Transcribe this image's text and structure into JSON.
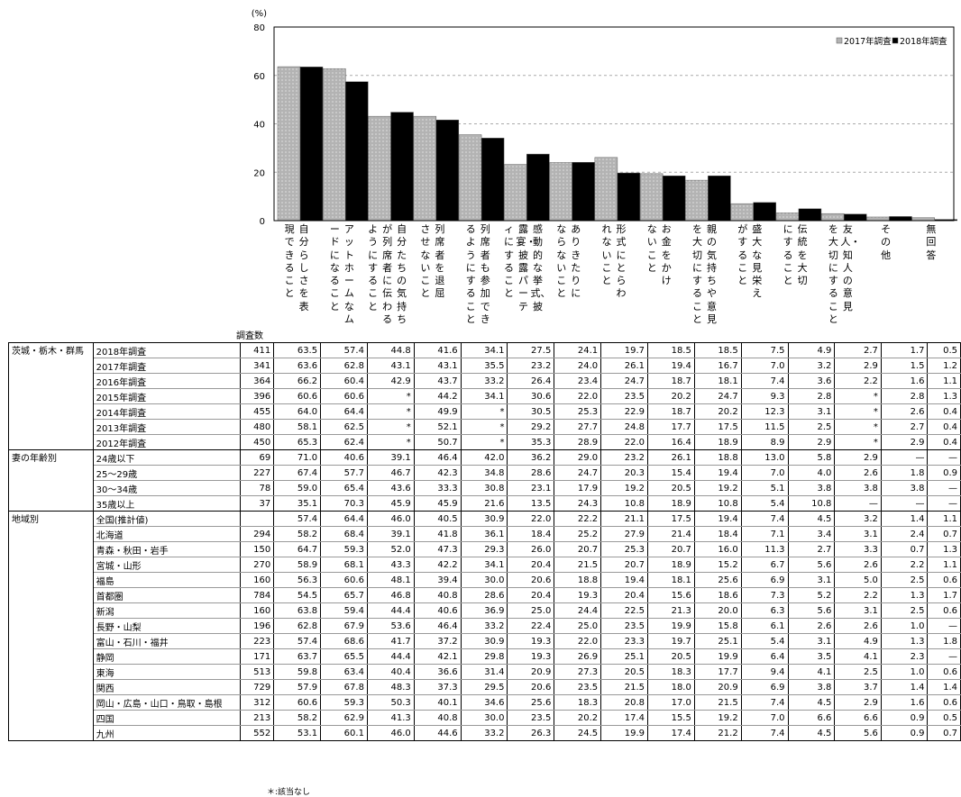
{
  "chart_data": {
    "type": "bar",
    "unit_label": "(%)",
    "ylim": [
      0,
      80
    ],
    "yticks": [
      0,
      20,
      40,
      60,
      80
    ],
    "grid": true,
    "legend_position": "top-right",
    "categories": [
      "自分らしさを表現できること",
      "アットホームなムードになること",
      "自分たちの気持ちが列席者に伝わるようにすること",
      "列席者を退屈させないこと",
      "列席者も参加できるようにすること",
      "感動的な挙式、披露宴・披露パーティにすること",
      "ありきたりにならないこと",
      "形式にとらわれないこと",
      "お金をかけないこと",
      "親の気持ちや意見を大切にすること",
      "盛大な見栄えがすること",
      "伝統を大切にすること",
      "友人・知人の意見を大切にすること",
      "その他",
      "無回答"
    ],
    "series": [
      {
        "name": "2017年調査",
        "color": "#b3b3b3",
        "values": [
          63.6,
          62.8,
          43.1,
          43.1,
          35.5,
          23.2,
          24.0,
          26.1,
          19.4,
          16.7,
          7.0,
          3.2,
          2.9,
          1.5,
          1.2
        ]
      },
      {
        "name": "2018年調査",
        "color": "#000000",
        "values": [
          63.5,
          57.4,
          44.8,
          41.6,
          34.1,
          27.5,
          24.1,
          19.7,
          18.5,
          18.5,
          7.5,
          4.9,
          2.7,
          1.7,
          0.5
        ]
      }
    ]
  },
  "table": {
    "count_header": "調査数",
    "groups": [
      {
        "name": "茨城・栃木・群馬",
        "rows": [
          {
            "label": "2018年調査",
            "n": "411",
            "v": [
              "63.5",
              "57.4",
              "44.8",
              "41.6",
              "34.1",
              "27.5",
              "24.1",
              "19.7",
              "18.5",
              "18.5",
              "7.5",
              "4.9",
              "2.7",
              "1.7",
              "0.5"
            ]
          },
          {
            "label": "2017年調査",
            "n": "341",
            "v": [
              "63.6",
              "62.8",
              "43.1",
              "43.1",
              "35.5",
              "23.2",
              "24.0",
              "26.1",
              "19.4",
              "16.7",
              "7.0",
              "3.2",
              "2.9",
              "1.5",
              "1.2"
            ]
          },
          {
            "label": "2016年調査",
            "n": "364",
            "v": [
              "66.2",
              "60.4",
              "42.9",
              "43.7",
              "33.2",
              "26.4",
              "23.4",
              "24.7",
              "18.7",
              "18.1",
              "7.4",
              "3.6",
              "2.2",
              "1.6",
              "1.1"
            ]
          },
          {
            "label": "2015年調査",
            "n": "396",
            "v": [
              "60.6",
              "60.6",
              "*",
              "44.2",
              "34.1",
              "30.6",
              "22.0",
              "23.5",
              "20.2",
              "24.7",
              "9.3",
              "2.8",
              "*",
              "2.8",
              "1.3"
            ]
          },
          {
            "label": "2014年調査",
            "n": "455",
            "v": [
              "64.0",
              "64.4",
              "*",
              "49.9",
              "*",
              "30.5",
              "25.3",
              "22.9",
              "18.7",
              "20.2",
              "12.3",
              "3.1",
              "*",
              "2.6",
              "0.4"
            ]
          },
          {
            "label": "2013年調査",
            "n": "480",
            "v": [
              "58.1",
              "62.5",
              "*",
              "52.1",
              "*",
              "29.2",
              "27.7",
              "24.8",
              "17.7",
              "17.5",
              "11.5",
              "2.5",
              "*",
              "2.7",
              "0.4"
            ]
          },
          {
            "label": "2012年調査",
            "n": "450",
            "v": [
              "65.3",
              "62.4",
              "*",
              "50.7",
              "*",
              "35.3",
              "28.9",
              "22.0",
              "16.4",
              "18.9",
              "8.9",
              "2.9",
              "*",
              "2.9",
              "0.4"
            ]
          }
        ]
      },
      {
        "name": "妻の年齢別",
        "rows": [
          {
            "label": "24歳以下",
            "n": "69",
            "v": [
              "71.0",
              "40.6",
              "39.1",
              "46.4",
              "42.0",
              "36.2",
              "29.0",
              "23.2",
              "26.1",
              "18.8",
              "13.0",
              "5.8",
              "2.9",
              "—",
              "—"
            ]
          },
          {
            "label": "25～29歳",
            "n": "227",
            "v": [
              "67.4",
              "57.7",
              "46.7",
              "42.3",
              "34.8",
              "28.6",
              "24.7",
              "20.3",
              "15.4",
              "19.4",
              "7.0",
              "4.0",
              "2.6",
              "1.8",
              "0.9"
            ]
          },
          {
            "label": "30～34歳",
            "n": "78",
            "v": [
              "59.0",
              "65.4",
              "43.6",
              "33.3",
              "30.8",
              "23.1",
              "17.9",
              "19.2",
              "20.5",
              "19.2",
              "5.1",
              "3.8",
              "3.8",
              "3.8",
              "—"
            ]
          },
          {
            "label": "35歳以上",
            "n": "37",
            "v": [
              "35.1",
              "70.3",
              "45.9",
              "45.9",
              "21.6",
              "13.5",
              "24.3",
              "10.8",
              "18.9",
              "10.8",
              "5.4",
              "10.8",
              "—",
              "—",
              "—"
            ]
          }
        ]
      },
      {
        "name": "地域別",
        "rows": [
          {
            "label": "全国(推計値)",
            "n": "",
            "v": [
              "57.4",
              "64.4",
              "46.0",
              "40.5",
              "30.9",
              "22.0",
              "22.2",
              "21.1",
              "17.5",
              "19.4",
              "7.4",
              "4.5",
              "3.2",
              "1.4",
              "1.1"
            ]
          },
          {
            "label": "北海道",
            "n": "294",
            "v": [
              "58.2",
              "68.4",
              "39.1",
              "41.8",
              "36.1",
              "18.4",
              "25.2",
              "27.9",
              "21.4",
              "18.4",
              "7.1",
              "3.4",
              "3.1",
              "2.4",
              "0.7"
            ]
          },
          {
            "label": "青森・秋田・岩手",
            "n": "150",
            "v": [
              "64.7",
              "59.3",
              "52.0",
              "47.3",
              "29.3",
              "26.0",
              "20.7",
              "25.3",
              "20.7",
              "16.0",
              "11.3",
              "2.7",
              "3.3",
              "0.7",
              "1.3"
            ]
          },
          {
            "label": "宮城・山形",
            "n": "270",
            "v": [
              "58.9",
              "68.1",
              "43.3",
              "42.2",
              "34.1",
              "20.4",
              "21.5",
              "20.7",
              "18.9",
              "15.2",
              "6.7",
              "5.6",
              "2.6",
              "2.2",
              "1.1"
            ]
          },
          {
            "label": "福島",
            "n": "160",
            "v": [
              "56.3",
              "60.6",
              "48.1",
              "39.4",
              "30.0",
              "20.6",
              "18.8",
              "19.4",
              "18.1",
              "25.6",
              "6.9",
              "3.1",
              "5.0",
              "2.5",
              "0.6"
            ]
          },
          {
            "label": "首都圏",
            "n": "784",
            "v": [
              "54.5",
              "65.7",
              "46.8",
              "40.8",
              "28.6",
              "20.4",
              "19.3",
              "20.4",
              "15.6",
              "18.6",
              "7.3",
              "5.2",
              "2.2",
              "1.3",
              "1.7"
            ]
          },
          {
            "label": "新潟",
            "n": "160",
            "v": [
              "63.8",
              "59.4",
              "44.4",
              "40.6",
              "36.9",
              "25.0",
              "24.4",
              "22.5",
              "21.3",
              "20.0",
              "6.3",
              "5.6",
              "3.1",
              "2.5",
              "0.6"
            ]
          },
          {
            "label": "長野・山梨",
            "n": "196",
            "v": [
              "62.8",
              "67.9",
              "53.6",
              "46.4",
              "33.2",
              "22.4",
              "25.0",
              "23.5",
              "19.9",
              "15.8",
              "6.1",
              "2.6",
              "2.6",
              "1.0",
              "—"
            ]
          },
          {
            "label": "富山・石川・福井",
            "n": "223",
            "v": [
              "57.4",
              "68.6",
              "41.7",
              "37.2",
              "30.9",
              "19.3",
              "22.0",
              "23.3",
              "19.7",
              "25.1",
              "5.4",
              "3.1",
              "4.9",
              "1.3",
              "1.8"
            ]
          },
          {
            "label": "静岡",
            "n": "171",
            "v": [
              "63.7",
              "65.5",
              "44.4",
              "42.1",
              "29.8",
              "19.3",
              "26.9",
              "25.1",
              "20.5",
              "19.9",
              "6.4",
              "3.5",
              "4.1",
              "2.3",
              "—"
            ]
          },
          {
            "label": "東海",
            "n": "513",
            "v": [
              "59.8",
              "63.4",
              "40.4",
              "36.6",
              "31.4",
              "20.9",
              "27.3",
              "20.5",
              "18.3",
              "17.7",
              "9.4",
              "4.1",
              "2.5",
              "1.0",
              "0.6"
            ]
          },
          {
            "label": "関西",
            "n": "729",
            "v": [
              "57.9",
              "67.8",
              "48.3",
              "37.3",
              "29.5",
              "20.6",
              "23.5",
              "21.5",
              "18.0",
              "20.9",
              "6.9",
              "3.8",
              "3.7",
              "1.4",
              "1.4"
            ]
          },
          {
            "label": "岡山・広島・山口・鳥取・島根",
            "n": "312",
            "v": [
              "60.6",
              "59.3",
              "50.3",
              "40.1",
              "34.6",
              "25.6",
              "18.3",
              "20.8",
              "17.0",
              "21.5",
              "7.4",
              "4.5",
              "2.9",
              "1.6",
              "0.6"
            ]
          },
          {
            "label": "四国",
            "n": "213",
            "v": [
              "58.2",
              "62.9",
              "41.3",
              "40.8",
              "30.0",
              "23.5",
              "20.2",
              "17.4",
              "15.5",
              "19.2",
              "7.0",
              "6.6",
              "6.6",
              "0.9",
              "0.5"
            ]
          },
          {
            "label": "九州",
            "n": "552",
            "v": [
              "53.1",
              "60.1",
              "46.0",
              "44.6",
              "33.2",
              "26.3",
              "24.5",
              "19.9",
              "17.4",
              "21.2",
              "7.4",
              "4.5",
              "5.6",
              "0.9",
              "0.7"
            ]
          }
        ]
      }
    ]
  },
  "footnote": "＊:該当なし"
}
